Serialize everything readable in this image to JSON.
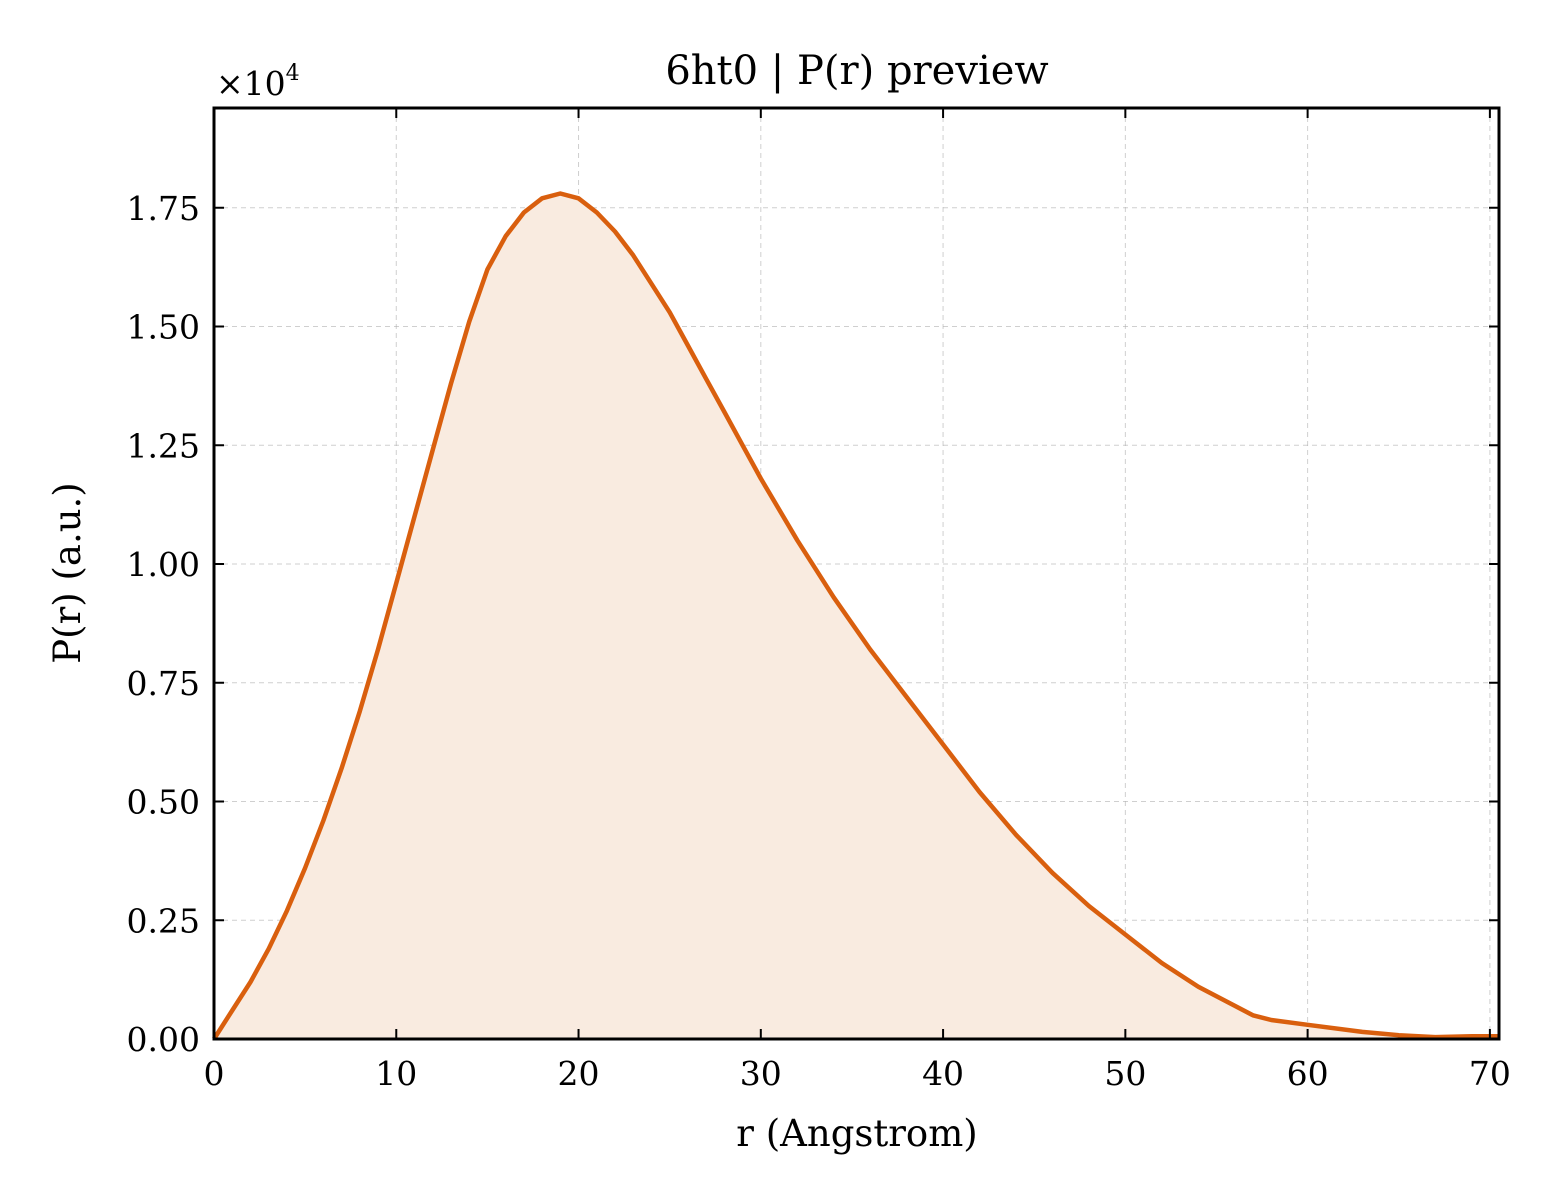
{
  "chart_data": {
    "type": "line",
    "title": "6ht0 | P(r) preview",
    "xlabel": "r (Angstrom)",
    "ylabel": "P(r) (a.u.)",
    "y_offset_label": "×10",
    "y_offset_exponent": "4",
    "xlim": [
      0,
      70.5
    ],
    "ylim": [
      0,
      1.96
    ],
    "xticks": [
      0,
      10,
      20,
      30,
      40,
      50,
      60,
      70
    ],
    "xtick_labels": [
      "0",
      "10",
      "20",
      "30",
      "40",
      "50",
      "60",
      "70"
    ],
    "yticks": [
      0,
      0.25,
      0.5,
      0.75,
      1.0,
      1.25,
      1.5,
      1.75
    ],
    "ytick_labels": [
      "0.00",
      "0.25",
      "0.50",
      "0.75",
      "1.00",
      "1.25",
      "1.50",
      "1.75"
    ],
    "grid": true,
    "line_color": "#d95f0e",
    "fill_color": "#f9ebe0",
    "series": [
      {
        "x": [
          0,
          1,
          2,
          3,
          4,
          5,
          6,
          7,
          8,
          9,
          10,
          11,
          12,
          13,
          14,
          15,
          16,
          17,
          18,
          19,
          20,
          21,
          22,
          23,
          24,
          25,
          26,
          27,
          28,
          29,
          30,
          32,
          34,
          36,
          38,
          40,
          42,
          44,
          46,
          48,
          50,
          52,
          54,
          56,
          57,
          58,
          60,
          63,
          65,
          67,
          69,
          70.5
        ],
        "y": [
          0.0,
          0.06,
          0.12,
          0.19,
          0.27,
          0.36,
          0.46,
          0.57,
          0.69,
          0.82,
          0.96,
          1.1,
          1.24,
          1.38,
          1.51,
          1.62,
          1.69,
          1.74,
          1.77,
          1.78,
          1.77,
          1.74,
          1.7,
          1.65,
          1.59,
          1.53,
          1.46,
          1.39,
          1.32,
          1.25,
          1.18,
          1.05,
          0.93,
          0.82,
          0.72,
          0.62,
          0.52,
          0.43,
          0.35,
          0.28,
          0.22,
          0.16,
          0.11,
          0.07,
          0.05,
          0.04,
          0.03,
          0.015,
          0.008,
          0.004,
          0.006,
          0.006
        ]
      }
    ]
  }
}
